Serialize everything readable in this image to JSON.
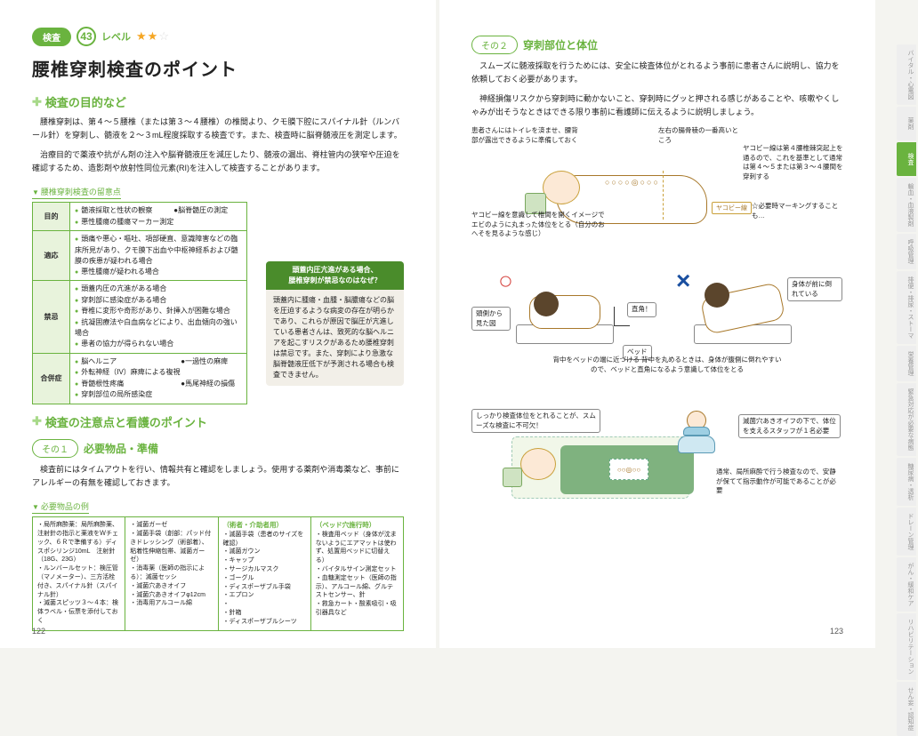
{
  "header": {
    "category": "検査",
    "number": "43",
    "level_label": "レベル",
    "stars": "★★☆"
  },
  "title": "腰椎穿刺検査のポイント",
  "sec_purpose": {
    "heading": "検査の目的など",
    "p1": "腰椎穿刺は、第４〜５腰椎（または第３〜４腰椎）の椎間より、クモ膜下腔にスパイナル針（ルンバール針）を穿刺し、髄液を２〜３mL程度採取する検査です。また、検査時に脳脊髄液圧を測定します。",
    "p2": "治療目的で薬液や抗がん剤の注入や脳脊髄液圧を減圧したり、髄液の漏出、脊柱管内の狭窄や圧迫を確認するため、造影剤や放射性同位元素(RI)を注入して検査することがあります。"
  },
  "tbl1": {
    "title": "腰椎穿刺検査の留意点",
    "rows": [
      {
        "th": "目的",
        "items": [
          "髄液採取と性状の観察　　　●脳脊髄圧の測定",
          "悪性腫瘍の腫瘍マーカー測定"
        ]
      },
      {
        "th": "適応",
        "items": [
          "頭痛や悪心・嘔吐、項部硬直、意識障害などの臨床所見があり、クモ膜下出血や中枢神経系および髄膜の疾患が疑われる場合",
          "悪性腫瘍が疑われる場合"
        ]
      },
      {
        "th": "禁忌",
        "items": [
          "頭蓋内圧の亢進がある場合",
          "穿刺部に感染症がある場合",
          "脊椎に変形や奇形があり、針挿入が困難な場合",
          "抗凝固療法や白血病などにより、出血傾向の強い場合",
          "患者の協力が得られない場合"
        ]
      },
      {
        "th": "合併症",
        "items": [
          "脳ヘルニア　　　　　　　　　●一過性の麻痺",
          "外転神経（IV）麻痺による複視",
          "脊髄根性疼痛　　　　　　　　●馬尾神経の損傷",
          "穿刺部位の局所感染症"
        ]
      }
    ]
  },
  "note_box": {
    "hd1": "頭蓋内圧亢進がある場合、",
    "hd2": "腰椎穿刺が禁忌なのはなぜ？",
    "body": "頭蓋内に腫瘍・血腫・脳膿瘍などの脳を圧迫するような病変の存在が明らかであり、これらが原因で脳圧が亢進している患者さんは、致死的な脳ヘルニアを起こすリスクがあるため腰椎穿刺は禁忌です。また、穿刺により急激な脳脊髄液圧低下が予測される場合も検査できません。"
  },
  "sec_care": {
    "heading": "検査の注意点と看護のポイント"
  },
  "sub1": {
    "pill": "その１",
    "title": "必要物品・準備",
    "p1": "検査前にはタイムアウトを行い、情報共有と確認をしましょう。使用する薬剤や消毒薬など、事前にアレルギーの有無を確認しておきます。",
    "tbl_title": "必要物品の例",
    "cols": [
      {
        "hd": "",
        "items": [
          "局所麻酔薬：局所麻酔薬、注射針の指示と薬液をＷチェック、６Ｒで準備する）ディスポシリンジ10mL　注射針（18G、23G）",
          "ルンバールセット：検圧管（マノメーター）、三方活栓付き、スパイナル針（スパイナル針）",
          "滅菌スピッツ３〜４本：検体ラベル・伝票を添付しておく"
        ]
      },
      {
        "hd": "",
        "items": [
          "滅菌ガーゼ",
          "滅菌手袋（創部：パッド付きドレッシング（術部着）、粘着性伸縮包帯、滅菌ガーゼ）",
          "消毒薬（医師の指示による）：滅菌セッシ",
          "滅菌穴あきオイフ",
          "滅菌穴あきオイフφ12cm",
          "消毒用アルコール綿"
        ]
      },
      {
        "hd": "（術者・介助者用）",
        "items": [
          "滅菌手袋（患者のサイズを確認）",
          "滅菌ガウン",
          "キャップ",
          "サージカルマスク",
          "ゴーグル",
          "ディスポーザブル手袋",
          "エプロン",
          "",
          "針箱",
          "ディスポーザブルシーツ"
        ]
      },
      {
        "hd": "（ベッド穴施行時）",
        "items": [
          "検査用ベッド（身体が沈まないようにエアマットは使わず、処置用ベッドに切替える）",
          "バイタルサイン測定セット",
          "血糖測定セット（医師の指示）、アルコール綿、グルテストセンサー、針",
          "救急カート・酸素吸引・吸引器具など"
        ]
      }
    ]
  },
  "page_left_num": "122",
  "sub2_right": {
    "pill": "その２",
    "title": "穿刺部位と体位",
    "p1": "スムーズに髄液採取を行うためには、安全に検査体位がとれるよう事前に患者さんに説明し、協力を依頼しておく必要があります。",
    "p2": "神経損傷リスクから穿刺時に動かないこと、穿刺時にグッと押される感じがあることや、咳嗽やくしゃみが出そうなときはできる限り事前に看護師に伝えるように説明しましょう。"
  },
  "fig1": {
    "c1": "患者さんにはトイレを済ませ、腰背部が露出できるように準備しておく",
    "c2": "左右の腸骨稜の一番高いところ",
    "c3": "ヤコビー線は第４腰椎棘突起上を通るので、これを基準として通常は第４〜５または第３〜４腰間を穿刺する",
    "c4": "ヤコビー線を意識して椎間を開くイメージでエビのように丸まった体位をとる（自分のおへそを見るような感じ）",
    "ylabel": "ヤコビー線",
    "c5": "☆必要時マーキングすることも…"
  },
  "fig2": {
    "c1": "頭側から見た図",
    "c2": "直角！",
    "c3": "ベッド",
    "c4": "身体が前に倒れている",
    "c5": "背中をベッドの端に近づける\n背中を丸めるときは、身体が腹側に倒れやすいので、ベッドと直角になるよう意識して体位をとる"
  },
  "fig3": {
    "c1": "しっかり検査体位をとれることが、スムーズな検査に不可欠！",
    "c2": "滅菌穴あきオイフの下で、体位を支えるスタッフが１名必要",
    "c3": "通常、局所麻酔で行う検査なので、安静が保てて指示動作が可能であることが必要"
  },
  "page_right_num": "123",
  "side_tabs": [
    {
      "t": "バイタル・心電図",
      "a": false
    },
    {
      "t": "薬剤",
      "a": false
    },
    {
      "t": "検査",
      "a": true
    },
    {
      "t": "輸血・血液製剤",
      "a": false
    },
    {
      "t": "呼吸管理",
      "a": false
    },
    {
      "t": "排便・排尿・ストーマ",
      "a": false
    },
    {
      "t": "栄養管理",
      "a": false
    },
    {
      "t": "緊急対応が必要な病態",
      "a": false
    },
    {
      "t": "糖尿病・透析",
      "a": false
    },
    {
      "t": "ドレーン管理",
      "a": false
    },
    {
      "t": "がん・緩和ケア",
      "a": false
    },
    {
      "t": "リハビリテーション",
      "a": false
    },
    {
      "t": "せん妄・認知症",
      "a": false
    }
  ]
}
